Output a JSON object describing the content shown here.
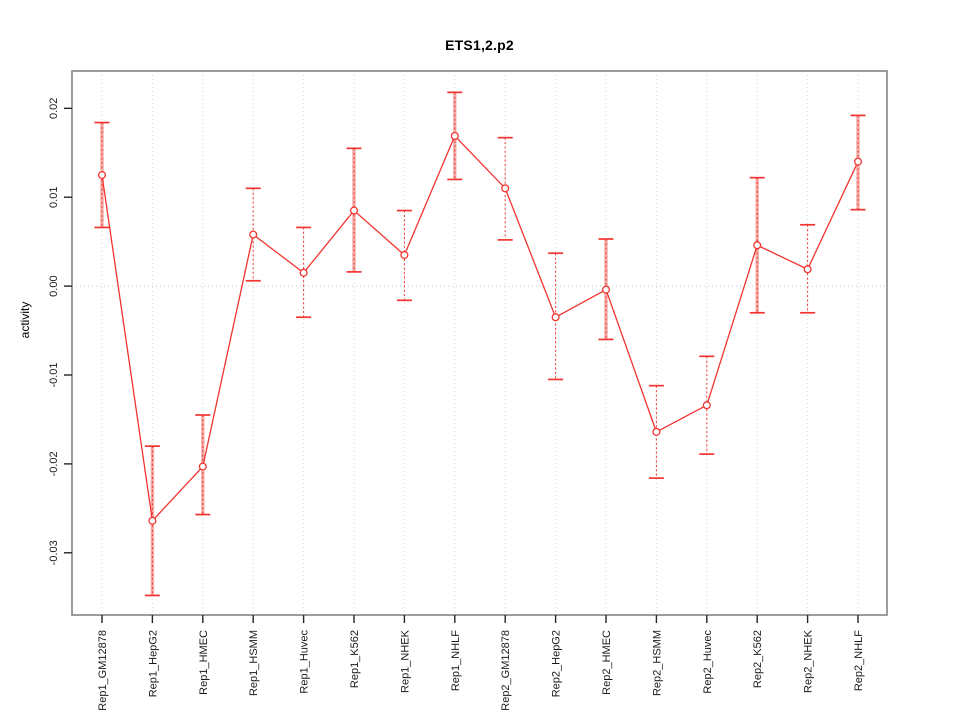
{
  "chart_data": {
    "type": "line",
    "title": "ETS1,2.p2",
    "xlabel": "",
    "ylabel": "activity",
    "categories": [
      "Rep1_GM12878",
      "Rep1_HepG2",
      "Rep1_HMEC",
      "Rep1_HSMM",
      "Rep1_Huvec",
      "Rep1_K562",
      "Rep1_NHEK",
      "Rep1_NHLF",
      "Rep2_GM12878",
      "Rep2_HepG2",
      "Rep2_HMEC",
      "Rep2_HSMM",
      "Rep2_Huvec",
      "Rep2_K562",
      "Rep2_NHEK",
      "Rep2_NHLF"
    ],
    "series": [
      {
        "name": "activity",
        "values": [
          0.0125,
          -0.0264,
          -0.0203,
          0.0058,
          0.0015,
          0.0085,
          0.0035,
          0.0169,
          0.011,
          -0.0035,
          -0.0004,
          -0.0164,
          -0.0134,
          0.0046,
          0.0019,
          0.014
        ],
        "lower": [
          0.0066,
          -0.0348,
          -0.0257,
          0.0006,
          -0.0035,
          0.0016,
          -0.0016,
          0.012,
          0.0052,
          -0.0105,
          -0.006,
          -0.0216,
          -0.0189,
          -0.003,
          -0.003,
          0.0086
        ],
        "upper": [
          0.0184,
          -0.018,
          -0.0145,
          0.011,
          0.0066,
          0.0155,
          0.0085,
          0.0218,
          0.0167,
          0.0037,
          0.0053,
          -0.0112,
          -0.0079,
          0.0122,
          0.0069,
          0.0192
        ],
        "bar_style": [
          "double",
          "double",
          "double",
          "single",
          "single",
          "double",
          "single",
          "double",
          "single",
          "single",
          "double",
          "single",
          "single",
          "double",
          "single",
          "double"
        ]
      }
    ],
    "ylim": [
      -0.037,
      0.0242
    ],
    "yticks": [
      0.02,
      0.01,
      0.0,
      -0.01,
      -0.02,
      -0.03
    ],
    "grid": {
      "vertical_per_category": true,
      "horizontal_zero_line": true,
      "style": "dotted"
    },
    "legend": "none",
    "marker": "open-circle",
    "error_bars": true,
    "colors": {
      "line": "#f23430",
      "error_band": "#f6aca8",
      "box": "#8a8a8a",
      "tick": "#242424",
      "text": "#1a1a1a",
      "grid": "#d8d8d8",
      "zero_line": "#c9c9c9",
      "title": "#000000",
      "background": "#ffffff"
    }
  }
}
